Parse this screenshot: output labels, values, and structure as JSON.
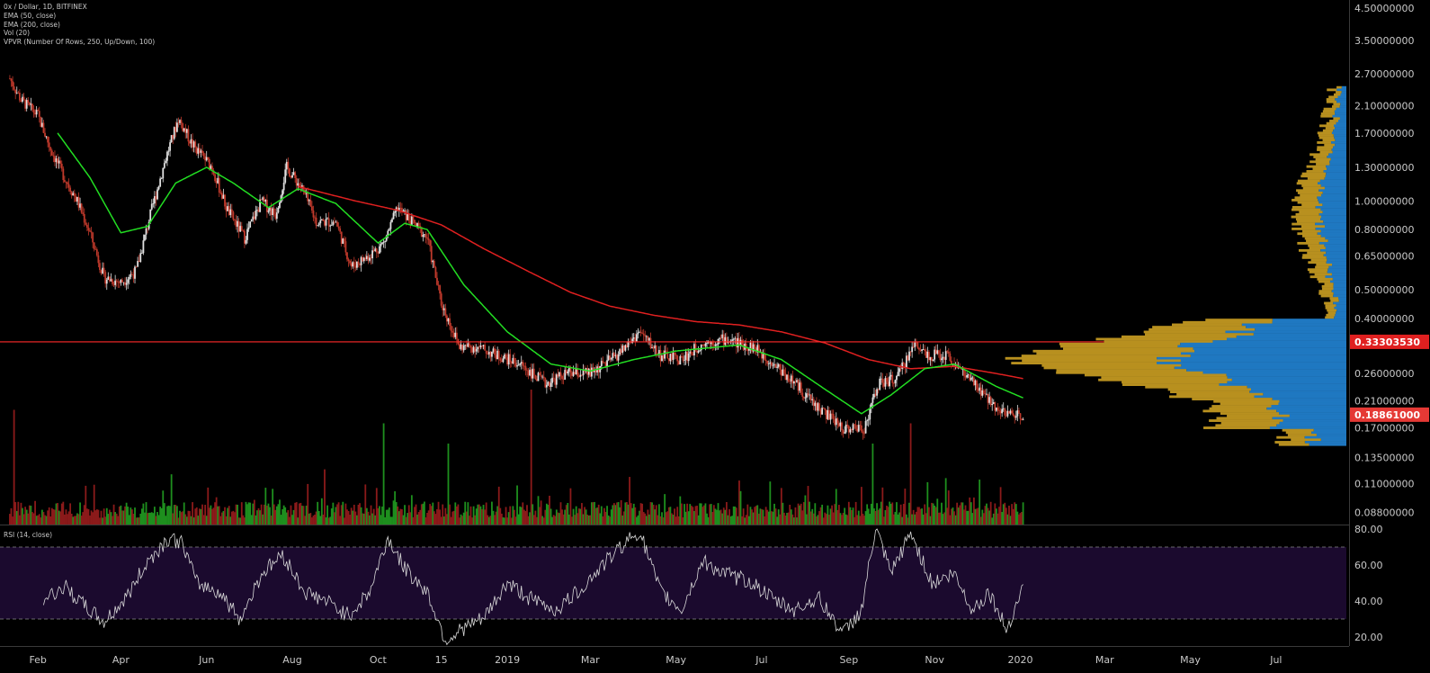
{
  "legend": {
    "title": "0x / Dollar, 1D, BITFINEX",
    "ema50": "EMA (50, close)",
    "ema200": "EMA (200, close)",
    "vol": "Vol (20)",
    "vpvr": "VPVR (Number Of Rows, 250, Up/Down, 100)"
  },
  "rsi_label": "RSI (14, close)",
  "colors": {
    "up": "#26a69a",
    "candle_up": "#e0e0e0",
    "candle_down": "#c0392b",
    "ema50": "#22dd22",
    "ema200": "#e02020",
    "hline": "#ff2a2a",
    "vol_up": "#1e8f1e",
    "vol_down": "#8b1a1a",
    "vpvr_up": "#1f78c1",
    "vpvr_down": "#b8901f",
    "rsi_band": "#1b0a2e",
    "rsi_line": "#d8d8d8",
    "badge_red": "#e02020",
    "badge_current": "#e53935"
  },
  "chart_data": [
    {
      "type": "candlestick",
      "title": "0x / Dollar, 1D, BITFINEX",
      "y_scale": "log",
      "y_ticks": [
        "4.50000000",
        "3.50000000",
        "2.70000000",
        "2.10000000",
        "1.70000000",
        "1.30000000",
        "1.00000000",
        "0.80000000",
        "0.65000000",
        "0.50000000",
        "0.40000000",
        "0.26000000",
        "0.21000000",
        "0.17000000",
        "0.13500000",
        "0.11000000",
        "0.08800000"
      ],
      "y_tick_values": [
        4.5,
        3.5,
        2.7,
        2.1,
        1.7,
        1.3,
        1.0,
        0.8,
        0.65,
        0.5,
        0.4,
        0.26,
        0.21,
        0.17,
        0.135,
        0.11,
        0.088
      ],
      "x_ticks": [
        "Feb",
        "Apr",
        "Jun",
        "Aug",
        "Oct",
        "15",
        "2019",
        "Mar",
        "May",
        "Jul",
        "Sep",
        "Nov",
        "2020",
        "Mar",
        "May",
        "Jul"
      ],
      "x_tick_dates": [
        "2018-02-01",
        "2018-04-01",
        "2018-06-01",
        "2018-08-01",
        "2018-10-01",
        "2018-11-15",
        "2019-01-01",
        "2019-03-01",
        "2019-05-01",
        "2019-07-01",
        "2019-09-01",
        "2019-11-01",
        "2020-01-01",
        "2020-03-01",
        "2020-05-01",
        "2020-07-01"
      ],
      "price_path": [
        [
          "2018-01-12",
          2.6
        ],
        [
          "2018-01-20",
          2.2
        ],
        [
          "2018-02-01",
          1.95
        ],
        [
          "2018-02-10",
          1.5
        ],
        [
          "2018-02-20",
          1.2
        ],
        [
          "2018-03-01",
          1.0
        ],
        [
          "2018-03-10",
          0.78
        ],
        [
          "2018-03-20",
          0.55
        ],
        [
          "2018-04-01",
          0.53
        ],
        [
          "2018-04-12",
          0.58
        ],
        [
          "2018-04-22",
          0.9
        ],
        [
          "2018-05-03",
          1.4
        ],
        [
          "2018-05-12",
          1.9
        ],
        [
          "2018-05-22",
          1.55
        ],
        [
          "2018-06-05",
          1.3
        ],
        [
          "2018-06-15",
          0.95
        ],
        [
          "2018-06-28",
          0.75
        ],
        [
          "2018-07-10",
          1.0
        ],
        [
          "2018-07-20",
          0.9
        ],
        [
          "2018-07-28",
          1.3
        ],
        [
          "2018-08-08",
          1.1
        ],
        [
          "2018-08-18",
          0.85
        ],
        [
          "2018-09-01",
          0.85
        ],
        [
          "2018-09-12",
          0.6
        ],
        [
          "2018-09-24",
          0.65
        ],
        [
          "2018-10-05",
          0.72
        ],
        [
          "2018-10-15",
          0.95
        ],
        [
          "2018-10-25",
          0.85
        ],
        [
          "2018-11-05",
          0.75
        ],
        [
          "2018-11-15",
          0.45
        ],
        [
          "2018-11-28",
          0.32
        ],
        [
          "2018-12-10",
          0.32
        ],
        [
          "2018-12-25",
          0.3
        ],
        [
          "2019-01-10",
          0.28
        ],
        [
          "2019-01-28",
          0.24
        ],
        [
          "2019-02-12",
          0.26
        ],
        [
          "2019-03-01",
          0.26
        ],
        [
          "2019-03-20",
          0.3
        ],
        [
          "2019-04-05",
          0.36
        ],
        [
          "2019-04-20",
          0.3
        ],
        [
          "2019-05-05",
          0.29
        ],
        [
          "2019-05-20",
          0.33
        ],
        [
          "2019-06-05",
          0.34
        ],
        [
          "2019-06-25",
          0.32
        ],
        [
          "2019-07-10",
          0.28
        ],
        [
          "2019-07-25",
          0.24
        ],
        [
          "2019-08-10",
          0.2
        ],
        [
          "2019-08-28",
          0.17
        ],
        [
          "2019-09-12",
          0.17
        ],
        [
          "2019-09-22",
          0.24
        ],
        [
          "2019-10-05",
          0.25
        ],
        [
          "2019-10-18",
          0.33
        ],
        [
          "2019-10-28",
          0.3
        ],
        [
          "2019-11-10",
          0.3
        ],
        [
          "2019-11-25",
          0.25
        ],
        [
          "2019-12-10",
          0.21
        ],
        [
          "2019-12-22",
          0.19
        ],
        [
          "2020-01-03",
          0.189
        ]
      ],
      "ema50_path": [
        [
          "2018-02-15",
          1.7
        ],
        [
          "2018-03-10",
          1.2
        ],
        [
          "2018-04-01",
          0.78
        ],
        [
          "2018-04-20",
          0.82
        ],
        [
          "2018-05-10",
          1.15
        ],
        [
          "2018-06-01",
          1.3
        ],
        [
          "2018-06-20",
          1.15
        ],
        [
          "2018-07-15",
          0.95
        ],
        [
          "2018-08-05",
          1.1
        ],
        [
          "2018-09-01",
          0.98
        ],
        [
          "2018-10-01",
          0.72
        ],
        [
          "2018-10-20",
          0.84
        ],
        [
          "2018-11-05",
          0.8
        ],
        [
          "2018-12-01",
          0.52
        ],
        [
          "2019-01-01",
          0.36
        ],
        [
          "2019-02-01",
          0.28
        ],
        [
          "2019-03-01",
          0.265
        ],
        [
          "2019-04-01",
          0.29
        ],
        [
          "2019-05-01",
          0.31
        ],
        [
          "2019-06-15",
          0.325
        ],
        [
          "2019-07-15",
          0.29
        ],
        [
          "2019-08-15",
          0.23
        ],
        [
          "2019-09-10",
          0.19
        ],
        [
          "2019-10-01",
          0.22
        ],
        [
          "2019-10-25",
          0.27
        ],
        [
          "2019-11-15",
          0.28
        ],
        [
          "2019-12-15",
          0.235
        ],
        [
          "2020-01-03",
          0.215
        ]
      ],
      "ema200_path": [
        [
          "2018-08-05",
          1.12
        ],
        [
          "2018-09-15",
          1.0
        ],
        [
          "2018-10-15",
          0.93
        ],
        [
          "2018-11-15",
          0.83
        ],
        [
          "2018-12-15",
          0.69
        ],
        [
          "2019-01-15",
          0.58
        ],
        [
          "2019-02-15",
          0.49
        ],
        [
          "2019-03-15",
          0.44
        ],
        [
          "2019-04-15",
          0.41
        ],
        [
          "2019-05-15",
          0.39
        ],
        [
          "2019-06-15",
          0.38
        ],
        [
          "2019-07-15",
          0.36
        ],
        [
          "2019-08-15",
          0.33
        ],
        [
          "2019-09-15",
          0.29
        ],
        [
          "2019-10-15",
          0.27
        ],
        [
          "2019-11-15",
          0.275
        ],
        [
          "2019-12-15",
          0.26
        ],
        [
          "2020-01-03",
          0.25
        ]
      ],
      "horizontal_line": {
        "value": 0.3330353,
        "label": "0.33303530"
      },
      "current_price": {
        "value": 0.18861,
        "label": "0.18861000"
      },
      "x_range": [
        "2018-01-05",
        "2020-08-20"
      ],
      "y_range": [
        0.08,
        4.8
      ]
    },
    {
      "type": "bar",
      "series": [
        {
          "name": "Vol (20)"
        }
      ],
      "notable_spikes": [
        [
          "2018-01-15",
          0.85
        ],
        [
          "2018-10-05",
          0.75
        ],
        [
          "2018-11-20",
          0.6
        ],
        [
          "2019-01-18",
          1.0
        ],
        [
          "2019-09-18",
          0.6
        ],
        [
          "2019-10-15",
          0.75
        ]
      ]
    },
    {
      "type": "line",
      "title": "RSI (14, close)",
      "y_ticks": [
        "80.00",
        "60.00",
        "40.00",
        "20.00"
      ],
      "y_tick_values": [
        80,
        60,
        40,
        20
      ],
      "band": [
        30,
        70
      ],
      "y_range": [
        15,
        82
      ],
      "rsi_path": [
        [
          "2018-02-05",
          41
        ],
        [
          "2018-02-20",
          48
        ],
        [
          "2018-03-05",
          38
        ],
        [
          "2018-03-20",
          28
        ],
        [
          "2018-04-05",
          42
        ],
        [
          "2018-04-20",
          62
        ],
        [
          "2018-05-05",
          75
        ],
        [
          "2018-05-15",
          72
        ],
        [
          "2018-05-25",
          50
        ],
        [
          "2018-06-10",
          45
        ],
        [
          "2018-06-25",
          30
        ],
        [
          "2018-07-10",
          55
        ],
        [
          "2018-07-25",
          66
        ],
        [
          "2018-08-10",
          45
        ],
        [
          "2018-08-25",
          40
        ],
        [
          "2018-09-10",
          32
        ],
        [
          "2018-09-25",
          45
        ],
        [
          "2018-10-08",
          75
        ],
        [
          "2018-10-20",
          58
        ],
        [
          "2018-11-05",
          45
        ],
        [
          "2018-11-18",
          18
        ],
        [
          "2018-12-01",
          25
        ],
        [
          "2018-12-15",
          30
        ],
        [
          "2019-01-01",
          50
        ],
        [
          "2019-01-20",
          40
        ],
        [
          "2019-02-05",
          35
        ],
        [
          "2019-02-20",
          45
        ],
        [
          "2019-03-10",
          60
        ],
        [
          "2019-03-25",
          72
        ],
        [
          "2019-04-05",
          79
        ],
        [
          "2019-04-20",
          45
        ],
        [
          "2019-05-05",
          35
        ],
        [
          "2019-05-20",
          62
        ],
        [
          "2019-06-05",
          55
        ],
        [
          "2019-06-25",
          50
        ],
        [
          "2019-07-10",
          40
        ],
        [
          "2019-07-25",
          35
        ],
        [
          "2019-08-10",
          42
        ],
        [
          "2019-08-28",
          22
        ],
        [
          "2019-09-10",
          35
        ],
        [
          "2019-09-20",
          80
        ],
        [
          "2019-10-01",
          55
        ],
        [
          "2019-10-15",
          78
        ],
        [
          "2019-10-30",
          50
        ],
        [
          "2019-11-15",
          55
        ],
        [
          "2019-11-28",
          35
        ],
        [
          "2019-12-10",
          45
        ],
        [
          "2019-12-22",
          24
        ],
        [
          "2020-01-03",
          48
        ]
      ]
    }
  ]
}
